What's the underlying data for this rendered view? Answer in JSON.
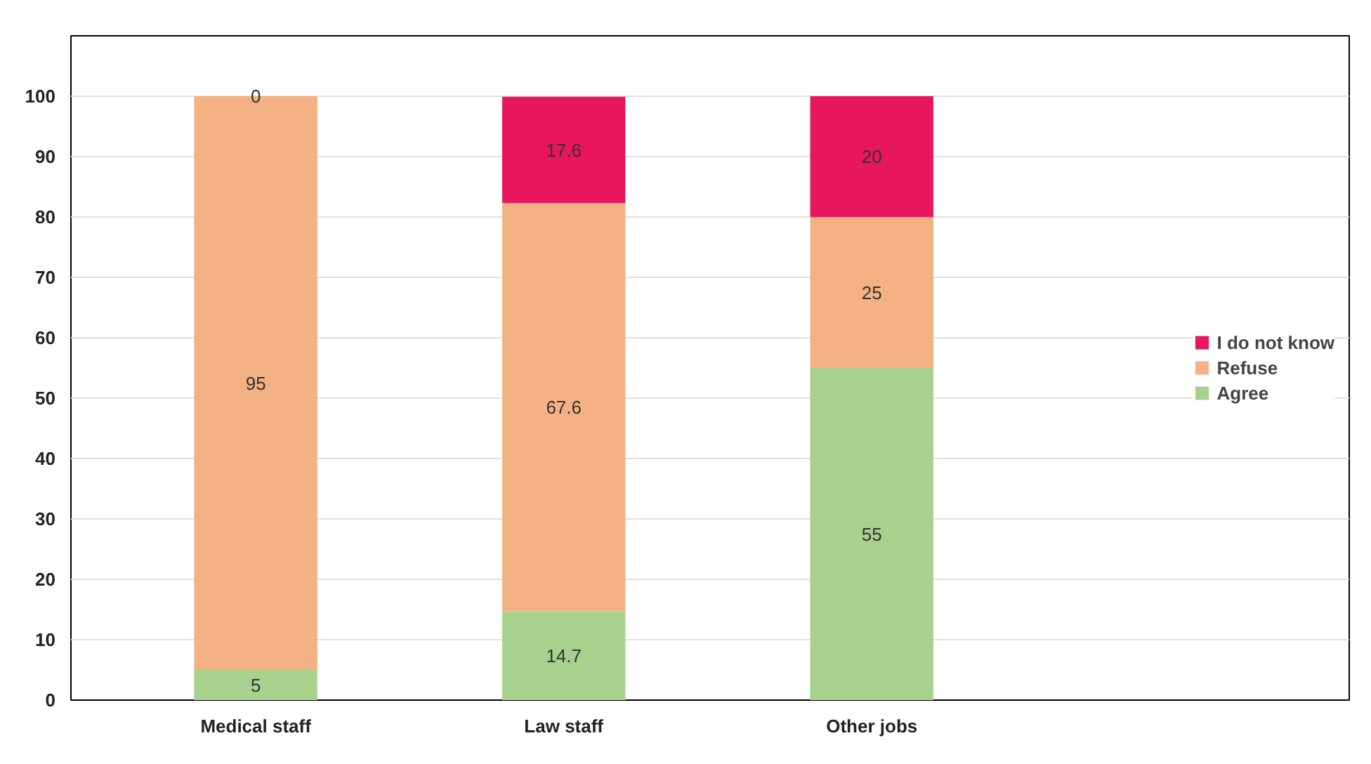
{
  "chart_data": {
    "type": "bar",
    "stacked": true,
    "categories": [
      "Medical staff",
      "Law staff",
      "Other jobs"
    ],
    "series": [
      {
        "name": "Agree",
        "color": "#a9d18e",
        "values": [
          5,
          14.7,
          55
        ]
      },
      {
        "name": "Refuse",
        "color": "#f4b183",
        "values": [
          95,
          67.6,
          25
        ]
      },
      {
        "name": "I do not know",
        "color": "#e8175d",
        "values": [
          0,
          17.6,
          20
        ]
      }
    ],
    "ylim": [
      0,
      110
    ],
    "yticks": [
      0,
      10,
      20,
      30,
      40,
      50,
      60,
      70,
      80,
      90,
      100
    ],
    "grid": "y",
    "legend": "right",
    "data_labels": true
  }
}
